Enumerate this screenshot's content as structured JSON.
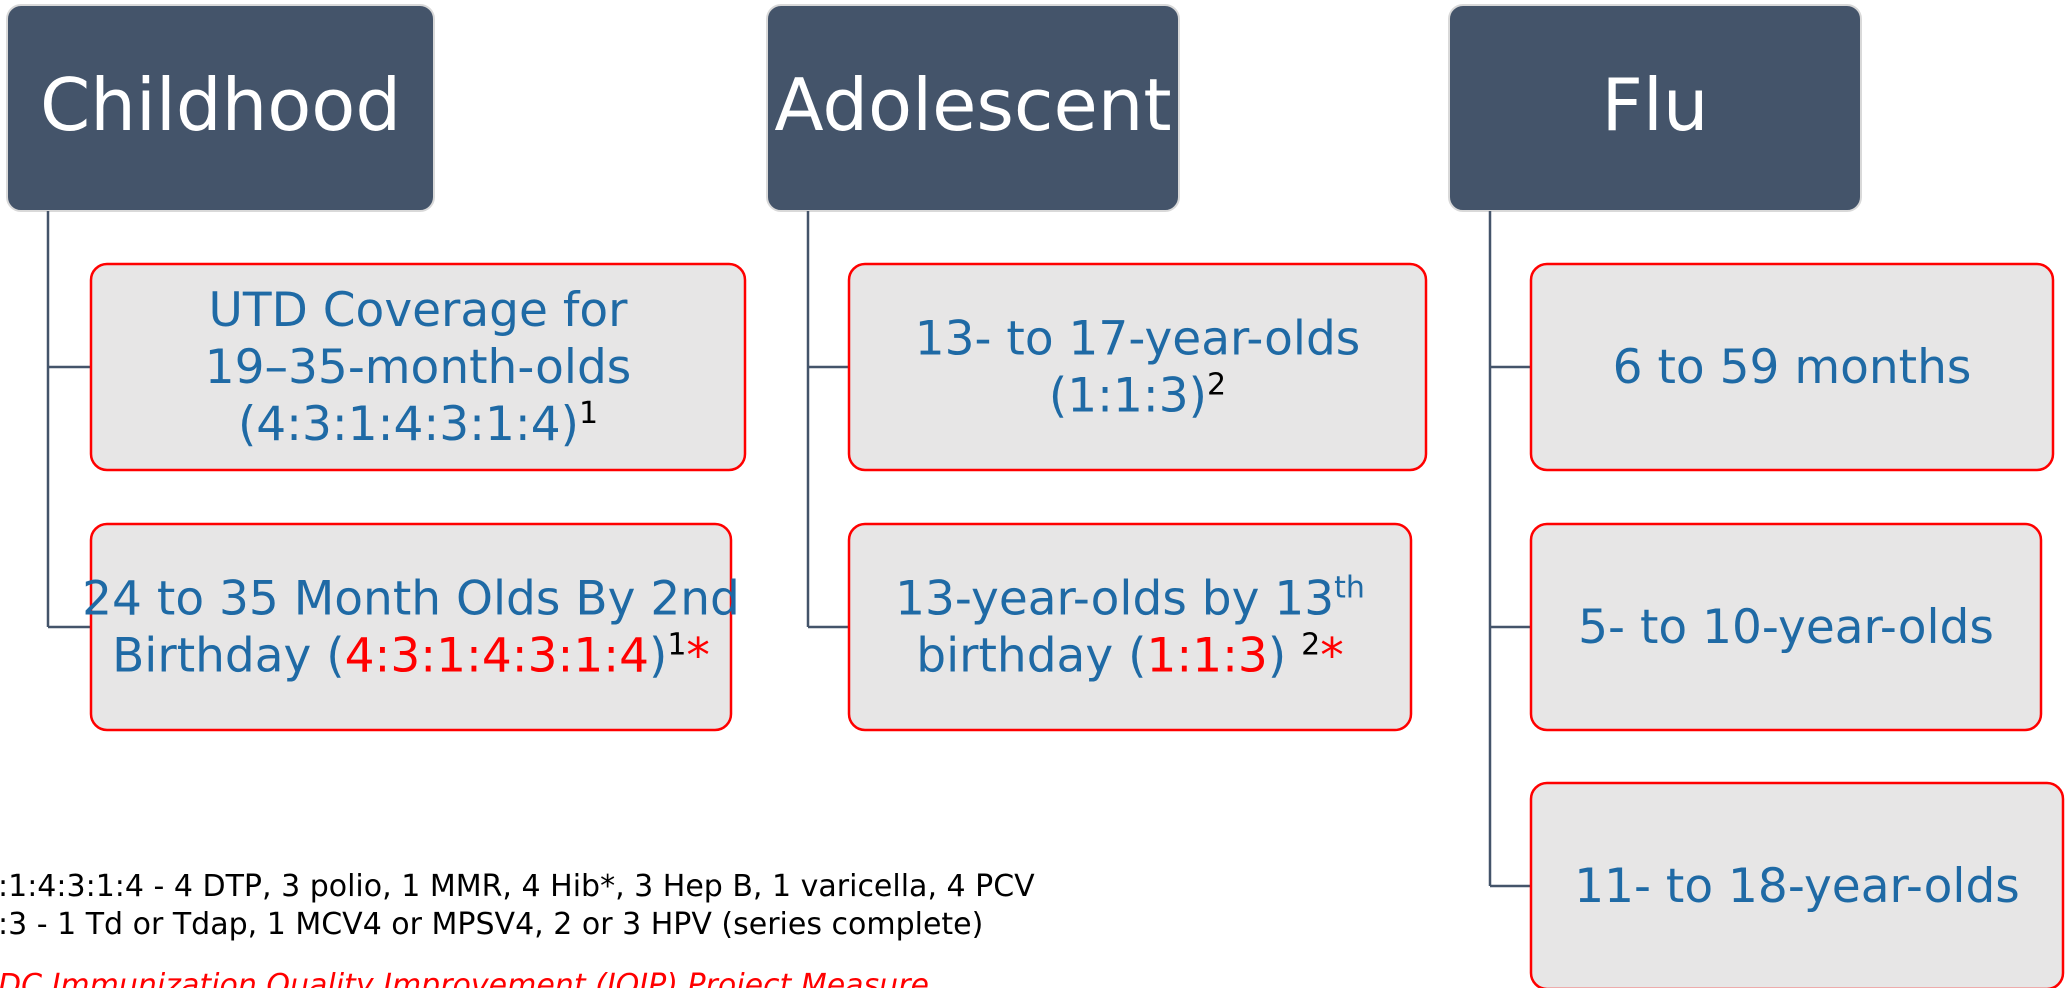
{
  "header_color": "#44546a",
  "box_fill": "#e7e6e6",
  "box_stroke": "#ff0000",
  "text_color": "#1f6aa5",
  "columns": [
    {
      "label": "Childhood",
      "children": [
        {
          "lines": [
            [
              {
                "text": "UTD Coverage for"
              }
            ],
            [
              {
                "text": "19–35-month-olds"
              }
            ],
            [
              {
                "text": "(4:3:1:4:3:1:4)"
              },
              {
                "text": "1",
                "sup": true,
                "color": "#000000"
              }
            ]
          ]
        },
        {
          "lines": [
            [
              {
                "text": "24 to 35 Month Olds By 2nd"
              }
            ],
            [
              {
                "text": "Birthday ("
              },
              {
                "text": "4:3:1:4:3:1:4",
                "color": "#ff0000"
              },
              {
                "text": ")"
              },
              {
                "text": "1",
                "sup": true,
                "color": "#000000"
              },
              {
                "text": "*",
                "color": "#ff0000"
              }
            ]
          ]
        }
      ]
    },
    {
      "label": "Adolescent",
      "children": [
        {
          "lines": [
            [
              {
                "text": "13- to 17-year-olds"
              }
            ],
            [
              {
                "text": "(1:1:3)"
              },
              {
                "text": "2",
                "sup": true,
                "color": "#000000"
              }
            ]
          ]
        },
        {
          "lines": [
            [
              {
                "text": "13-year-olds by 13"
              },
              {
                "text": "th",
                "sup": true
              }
            ],
            [
              {
                "text": "birthday ("
              },
              {
                "text": "1:1:3",
                "color": "#ff0000"
              },
              {
                "text": ") "
              },
              {
                "text": "2",
                "sup": true,
                "color": "#000000"
              },
              {
                "text": "*",
                "color": "#ff0000"
              }
            ]
          ]
        }
      ]
    },
    {
      "label": "Flu",
      "children": [
        {
          "lines": [
            [
              {
                "text": "6 to 59 months"
              }
            ]
          ]
        },
        {
          "lines": [
            [
              {
                "text": "5- to 10-year-olds"
              }
            ]
          ]
        },
        {
          "lines": [
            [
              {
                "text": "11- to 18-year-olds"
              }
            ]
          ]
        }
      ]
    }
  ],
  "footnotes": [
    {
      "text": ":1:4:3:1:4 - 4 DTP, 3 polio, 1 MMR, 4 Hib*, 3 Hep B, 1 varicella, 4 PCV",
      "color": "#000000"
    },
    {
      "text": ":3 - 1 Td or Tdap, 1 MCV4 or MPSV4, 2 or 3 HPV (series complete)",
      "color": "#000000"
    },
    {
      "text": "DC Immunization Quality Improvement (IQIP) Project Measure",
      "color": "#ff0000",
      "italic": true
    }
  ]
}
